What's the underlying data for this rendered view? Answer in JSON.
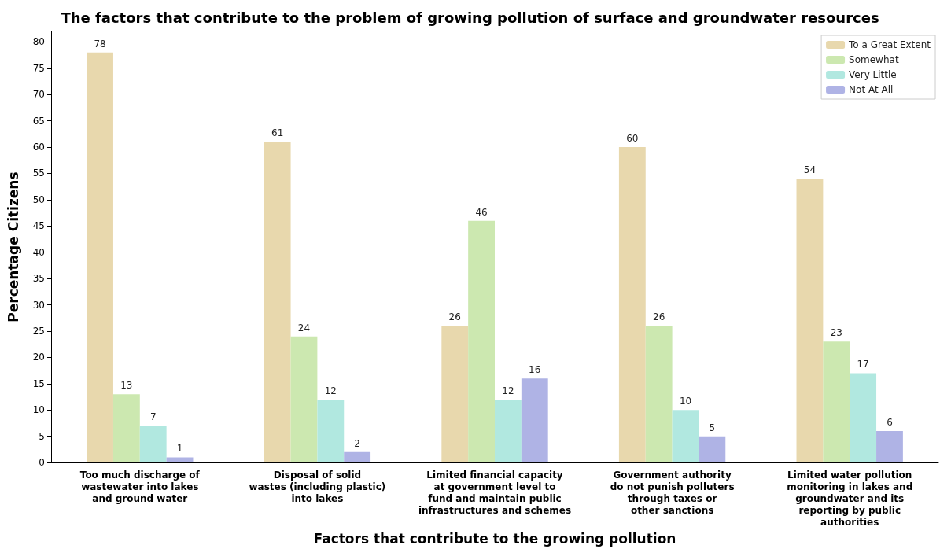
{
  "chart_data": {
    "type": "bar",
    "title": "The factors that contribute to the problem of growing pollution of surface and groundwater resources",
    "xlabel": "Factors that contribute to the growing pollution",
    "ylabel": "Percentage Citizens",
    "categories": [
      "Too much discharge of\nwastewater into lakes\nand ground water",
      "Disposal of solid\nwastes (including plastic)\ninto lakes",
      "Limited financial capacity\nat government level to\nfund and maintain public\ninfrastructures and schemes",
      "Government authority\ndo not punish polluters\nthrough taxes or\nother sanctions",
      "Limited water pollution\nmonitoring in lakes and\ngroundwater and its\nreporting by public\nauthorities"
    ],
    "series": [
      {
        "name": "To a Great Extent",
        "color": "#e8d8ad",
        "values": [
          78,
          61,
          26,
          60,
          54
        ]
      },
      {
        "name": "Somewhat",
        "color": "#cce8b0",
        "values": [
          13,
          24,
          46,
          26,
          23
        ]
      },
      {
        "name": "Very Little",
        "color": "#b1e8e0",
        "values": [
          7,
          12,
          12,
          10,
          17
        ]
      },
      {
        "name": "Not At All",
        "color": "#afb3e5",
        "values": [
          1,
          2,
          16,
          5,
          6
        ]
      }
    ],
    "ylim": [
      0,
      82
    ],
    "yticks": [
      0,
      5,
      10,
      15,
      20,
      25,
      30,
      35,
      40,
      45,
      50,
      55,
      60,
      65,
      70,
      75,
      80
    ],
    "data_labels": true,
    "grid": false,
    "legend": "top right"
  }
}
